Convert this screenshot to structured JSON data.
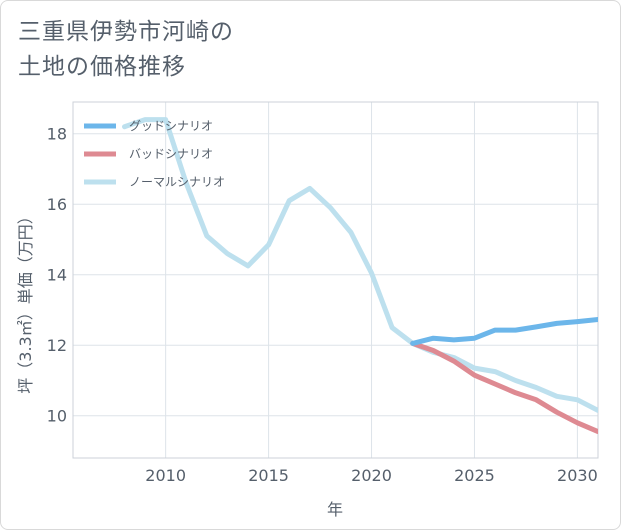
{
  "title_line1": "三重県伊勢市河崎の",
  "title_line2": "土地の価格推移",
  "chart_data": {
    "type": "line",
    "xlabel": "年",
    "ylabel": "坪（3.3㎡）単価（万円）",
    "xlim": [
      2005.5,
      2031
    ],
    "ylim": [
      8.8,
      18.9
    ],
    "xticks": [
      2010,
      2015,
      2020,
      2025,
      2030
    ],
    "yticks": [
      10,
      12,
      14,
      16,
      18
    ],
    "legend_position": "top-left",
    "series": [
      {
        "name": "グッドシナリオ",
        "color": "#6cb6ea",
        "x": [
          2022,
          2023,
          2024,
          2025,
          2026,
          2027,
          2028,
          2029,
          2030,
          2031
        ],
        "y": [
          12.05,
          12.2,
          12.15,
          12.2,
          12.43,
          12.43,
          12.52,
          12.62,
          12.67,
          12.73
        ]
      },
      {
        "name": "バッドシナリオ",
        "color": "#de8a92",
        "x": [
          2022,
          2023,
          2024,
          2025,
          2026,
          2027,
          2028,
          2029,
          2030,
          2031
        ],
        "y": [
          12.05,
          11.85,
          11.55,
          11.15,
          10.9,
          10.65,
          10.45,
          10.1,
          9.8,
          9.55
        ]
      },
      {
        "name": "ノーマルシナリオ",
        "color": "#bde0ee",
        "x": [
          2008,
          2009,
          2010,
          2011,
          2012,
          2013,
          2014,
          2015,
          2016,
          2017,
          2018,
          2019,
          2020,
          2021,
          2022,
          2023,
          2024,
          2025,
          2026,
          2027,
          2028,
          2029,
          2030,
          2031
        ],
        "y": [
          18.2,
          18.4,
          18.4,
          16.6,
          15.1,
          14.6,
          14.25,
          14.85,
          16.1,
          16.45,
          15.9,
          15.2,
          14.05,
          12.5,
          12.05,
          11.8,
          11.65,
          11.35,
          11.25,
          11.0,
          10.8,
          10.55,
          10.45,
          10.15
        ]
      }
    ]
  }
}
